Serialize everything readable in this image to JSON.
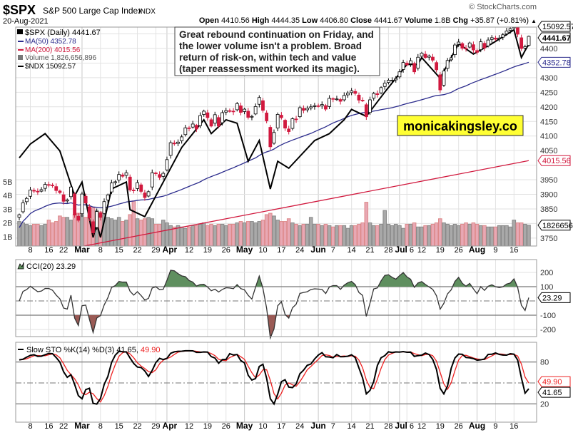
{
  "header": {
    "symbol": "$SPX",
    "name": "S&P 500 Large Cap Index",
    "exchange": "INDX",
    "date": "20-Aug-2021",
    "watermark": "© StockCharts.com",
    "open_label": "Open",
    "open": "4410.56",
    "high_label": "High",
    "high": "4444.35",
    "low_label": "Low",
    "low": "4406.80",
    "close_label": "Close",
    "close": "4441.67",
    "volume_label": "Volume",
    "volume": "1.8B",
    "chg_label": "Chg",
    "chg": "+35.87 (+0.81%)",
    "chg_arrow": "▲"
  },
  "legend": {
    "price": "$SPX (Daily) 4441.67",
    "ma50": "MA(50) 4352.78",
    "ma200": "MA(200) 4015.56",
    "volume": "Volume 1,826,656,896",
    "ndx": "$NDX 15092.57"
  },
  "annotation": {
    "lines": [
      "Great rebound continuation on Friday, and",
      "the lower volume isn't a problem. Broad",
      "return of risk-on, within tech and value",
      "(taper reassessment worked its magic)."
    ]
  },
  "brand_box": {
    "text": "monicakingsley.co",
    "color": "#ffff33"
  },
  "colors": {
    "up": "#000000",
    "down": "#d1193e",
    "ma50": "#2b2b8c",
    "ma200": "#d1193e",
    "cci_pos": "#5f8f5f",
    "cci_neg": "#9a5a55",
    "vol_up": "#a9a9a9",
    "vol_down": "#e8a8b4",
    "sto_d": "#ee2222"
  },
  "tags": {
    "price": "4441.67",
    "ndx": "15092.57",
    "ma50": "4352.78",
    "ma200": "4015.56",
    "volume": "1826656",
    "cci": "23.29",
    "sto_d": "49.90",
    "sto_k": "41.65"
  },
  "cci_panel": {
    "title": "CCI(20) 23.29",
    "yticks": [
      "200",
      "100",
      "-100",
      "-200"
    ]
  },
  "sto_panel": {
    "title": "Slow STO %K(14) %D(3) 41.65,",
    "title_d": "49.90",
    "yticks": [
      "80",
      "20"
    ]
  },
  "chart_data": {
    "type": "candlestick",
    "xlim": [
      "2021-02-03",
      "2021-08-20"
    ],
    "xticks": [
      {
        "label": "8",
        "date": "2021-02-08"
      },
      {
        "label": "16",
        "date": "2021-02-16"
      },
      {
        "label": "22",
        "date": "2021-02-22"
      },
      {
        "label": "Mar",
        "date": "2021-03-01",
        "month": true
      },
      {
        "label": "8",
        "date": "2021-03-08"
      },
      {
        "label": "15",
        "date": "2021-03-15"
      },
      {
        "label": "22",
        "date": "2021-03-22"
      },
      {
        "label": "29",
        "date": "2021-03-29"
      },
      {
        "label": "Apr",
        "date": "2021-04-01",
        "month": true
      },
      {
        "label": "12",
        "date": "2021-04-12"
      },
      {
        "label": "19",
        "date": "2021-04-19"
      },
      {
        "label": "26",
        "date": "2021-04-26"
      },
      {
        "label": "May",
        "date": "2021-05-03",
        "month": true
      },
      {
        "label": "10",
        "date": "2021-05-10"
      },
      {
        "label": "17",
        "date": "2021-05-17"
      },
      {
        "label": "24",
        "date": "2021-05-24"
      },
      {
        "label": "Jun",
        "date": "2021-06-01",
        "month": true
      },
      {
        "label": "7",
        "date": "2021-06-07"
      },
      {
        "label": "14",
        "date": "2021-06-14"
      },
      {
        "label": "21",
        "date": "2021-06-21"
      },
      {
        "label": "28",
        "date": "2021-06-28"
      },
      {
        "label": "Jul",
        "date": "2021-07-01",
        "month": true
      },
      {
        "label": "6",
        "date": "2021-07-06"
      },
      {
        "label": "12",
        "date": "2021-07-12"
      },
      {
        "label": "19",
        "date": "2021-07-19"
      },
      {
        "label": "26",
        "date": "2021-07-26"
      },
      {
        "label": "Aug",
        "date": "2021-08-02",
        "month": true
      },
      {
        "label": "9",
        "date": "2021-08-09"
      },
      {
        "label": "16",
        "date": "2021-08-16"
      }
    ],
    "price_yticks": [
      "4400",
      "4300",
      "4250",
      "4200",
      "4150",
      "4100",
      "4050",
      "3950",
      "3900",
      "3850",
      "3750"
    ],
    "volume_yticks": [
      "5B",
      "4B",
      "3B",
      "2B",
      "1B"
    ],
    "spx_close": [
      3830,
      3871,
      3886,
      3915,
      3911,
      3909,
      3916,
      3934,
      3932,
      3931,
      3913,
      3906,
      3876,
      3881,
      3925,
      3829,
      3811,
      3901,
      3870,
      3819,
      3768,
      3841,
      3821,
      3875,
      3898,
      3939,
      3943,
      3968,
      3962,
      3974,
      3915,
      3913,
      3940,
      3910,
      3889,
      3909,
      3974,
      3971,
      3958,
      3972,
      4019,
      4077,
      4073,
      4079,
      4097,
      4128,
      4127,
      4141,
      4124,
      4170,
      4185,
      4163,
      4134,
      4173,
      4134,
      4180,
      4187,
      4186,
      4183,
      4211,
      4181,
      4192,
      4164,
      4167,
      4201,
      4232,
      4188,
      4152,
      4063,
      4112,
      4174,
      4163,
      4127,
      4115,
      4159,
      4156,
      4197,
      4188,
      4195,
      4200,
      4204,
      4202,
      4208,
      4192,
      4229,
      4226,
      4227,
      4219,
      4239,
      4247,
      4255,
      4246,
      4223,
      4221,
      4166,
      4224,
      4246,
      4242,
      4266,
      4281,
      4291,
      4291,
      4297,
      4320,
      4352,
      4344,
      4358,
      4320,
      4370,
      4384,
      4369,
      4374,
      4360,
      4327,
      4258,
      4323,
      4359,
      4368,
      4412,
      4422,
      4401,
      4400,
      4419,
      4395,
      4387,
      4423,
      4402,
      4429,
      4437,
      4432,
      4436,
      4447,
      4460,
      4468,
      4479,
      4449,
      4400,
      4406,
      4441.67
    ],
    "volume_billions": [
      2.1,
      2.0,
      1.9,
      1.8,
      1.9,
      1.9,
      1.8,
      1.9,
      2.2,
      2.0,
      2.1,
      2.5,
      2.4,
      2.4,
      2.2,
      2.6,
      2.7,
      2.6,
      2.4,
      2.6,
      3.1,
      2.9,
      2.8,
      2.6,
      2.4,
      2.3,
      2.2,
      2.4,
      2.1,
      2.2,
      2.6,
      3.6,
      2.3,
      2.2,
      2.3,
      2.4,
      2.3,
      1.9,
      1.9,
      2.2,
      2.0,
      1.8,
      1.7,
      1.8,
      1.7,
      1.6,
      1.7,
      1.8,
      1.8,
      1.9,
      2.0,
      1.8,
      1.9,
      1.8,
      1.9,
      1.9,
      1.8,
      1.9,
      1.9,
      2.0,
      2.1,
      2.0,
      2.1,
      2.1,
      2.0,
      2.1,
      2.2,
      2.6,
      2.7,
      2.5,
      2.2,
      2.1,
      2.1,
      2.3,
      2.0,
      1.9,
      1.8,
      1.9,
      1.9,
      2.4,
      1.9,
      1.9,
      1.8,
      1.9,
      1.8,
      1.7,
      1.8,
      1.8,
      1.8,
      1.6,
      1.8,
      1.8,
      1.9,
      2.0,
      3.5,
      2.0,
      1.8,
      1.8,
      1.9,
      2.9,
      1.9,
      1.8,
      1.9,
      1.8,
      1.6,
      1.9,
      1.9,
      2.0,
      1.7,
      1.7,
      1.8,
      1.8,
      1.9,
      2.0,
      2.3,
      2.0,
      1.9,
      1.8,
      1.9,
      1.8,
      1.9,
      2.0,
      1.9,
      2.0,
      1.9,
      1.8,
      1.8,
      1.7,
      1.7,
      1.7,
      1.8,
      1.8,
      1.8,
      1.7,
      2.2,
      2.0,
      2.0,
      1.9,
      1.83
    ],
    "ma200_range": [
      3680,
      4015.56
    ],
    "ndx": [
      [
        "2021-02-03",
        13450
      ],
      [
        "2021-02-08",
        13650
      ],
      [
        "2021-02-12",
        13800
      ],
      [
        "2021-02-19",
        13550
      ],
      [
        "2021-02-25",
        12900
      ],
      [
        "2021-03-01",
        13100
      ],
      [
        "2021-03-04",
        12300
      ],
      [
        "2021-03-05",
        12500
      ],
      [
        "2021-03-08",
        12300
      ],
      [
        "2021-03-11",
        13000
      ],
      [
        "2021-03-17",
        13100
      ],
      [
        "2021-03-18",
        12700
      ],
      [
        "2021-03-24",
        12600
      ],
      [
        "2021-03-26",
        12800
      ],
      [
        "2021-04-01",
        13200
      ],
      [
        "2021-04-08",
        13600
      ],
      [
        "2021-04-16",
        14000
      ],
      [
        "2021-04-20",
        13800
      ],
      [
        "2021-04-26",
        14000
      ],
      [
        "2021-04-29",
        13950
      ],
      [
        "2021-05-04",
        13400
      ],
      [
        "2021-05-07",
        13700
      ],
      [
        "2021-05-12",
        13000
      ],
      [
        "2021-05-14",
        13400
      ],
      [
        "2021-05-19",
        13300
      ],
      [
        "2021-05-28",
        13700
      ],
      [
        "2021-06-04",
        13800
      ],
      [
        "2021-06-10",
        14000
      ],
      [
        "2021-06-14",
        14150
      ],
      [
        "2021-06-18",
        14050
      ],
      [
        "2021-06-25",
        14400
      ],
      [
        "2021-07-06",
        14800
      ],
      [
        "2021-07-09",
        14800
      ],
      [
        "2021-07-12",
        14900
      ],
      [
        "2021-07-19",
        14600
      ],
      [
        "2021-07-26",
        15100
      ],
      [
        "2021-07-30",
        14950
      ],
      [
        "2021-08-06",
        15100
      ],
      [
        "2021-08-16",
        15300
      ],
      [
        "2021-08-18",
        14900
      ],
      [
        "2021-08-19",
        15000
      ],
      [
        "2021-08-20",
        15092.57
      ]
    ]
  }
}
